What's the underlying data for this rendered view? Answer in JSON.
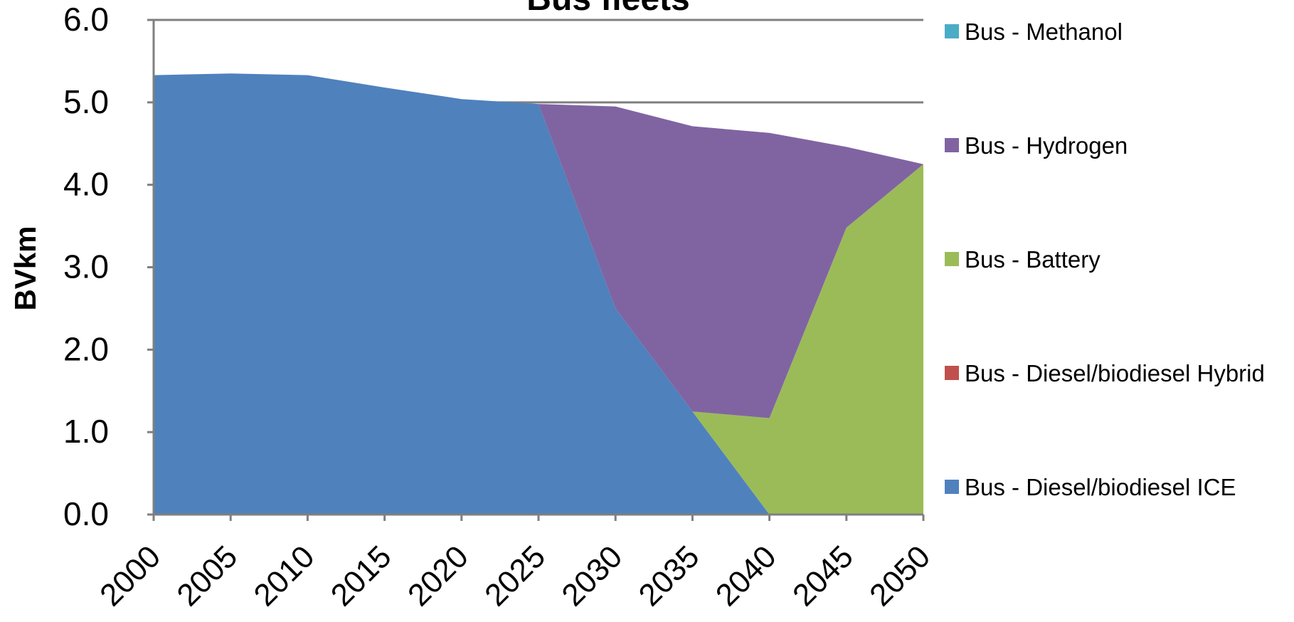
{
  "chart_data": {
    "type": "area",
    "stacked": true,
    "title": "Bus fleets",
    "xlabel": "",
    "ylabel": "BVkm",
    "x": [
      2000,
      2005,
      2010,
      2015,
      2020,
      2025,
      2030,
      2035,
      2040,
      2045,
      2050
    ],
    "x_tick_labels": [
      "2000",
      "2005",
      "2010",
      "2015",
      "2020",
      "2025",
      "2030",
      "2035",
      "2040",
      "2045",
      "2050"
    ],
    "ylim": [
      0,
      6
    ],
    "y_ticks": [
      0,
      1,
      2,
      3,
      4,
      5,
      6
    ],
    "y_tick_labels": [
      "0.0",
      "1.0",
      "2.0",
      "3.0",
      "4.0",
      "5.0",
      "6.0"
    ],
    "grid": "horizontal major lines at 5.0 and 6.0",
    "legend_position": "right",
    "series": [
      {
        "name": "Bus - Diesel/biodiesel ICE",
        "color": "#4F81BD",
        "values": [
          5.33,
          5.35,
          5.33,
          5.18,
          5.04,
          4.98,
          2.5,
          1.25,
          0.0,
          0.0,
          0.0
        ]
      },
      {
        "name": "Bus - Diesel/biodiesel Hybrid",
        "color": "#C0504D",
        "values": [
          0,
          0,
          0,
          0,
          0,
          0,
          0,
          0,
          0,
          0,
          0
        ]
      },
      {
        "name": "Bus - Battery",
        "color": "#9BBB59",
        "values": [
          0,
          0,
          0,
          0,
          0,
          0,
          0,
          0,
          1.17,
          3.48,
          4.25
        ]
      },
      {
        "name": "Bus - Hydrogen",
        "color": "#8064A2",
        "values": [
          0,
          0,
          0,
          0,
          0,
          0,
          2.45,
          3.46,
          3.46,
          0.98,
          0.0
        ]
      },
      {
        "name": "Bus - Methanol",
        "color": "#4BACC6",
        "values": [
          0,
          0,
          0,
          0,
          0,
          0,
          0,
          0,
          0,
          0,
          0
        ]
      }
    ],
    "legend_order": [
      4,
      3,
      2,
      1,
      0
    ]
  }
}
